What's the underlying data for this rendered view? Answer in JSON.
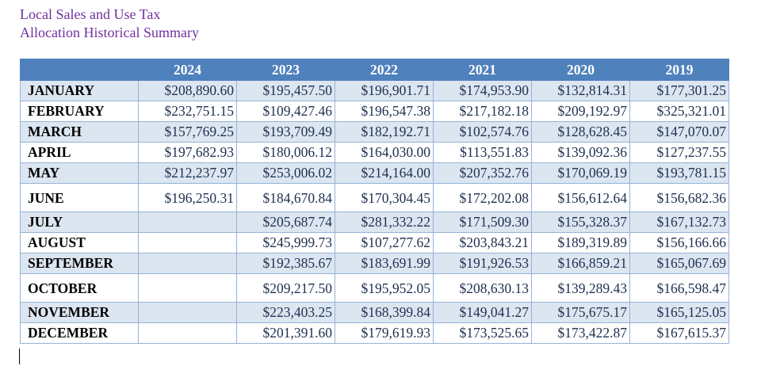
{
  "title": {
    "line1": "Local Sales and Use Tax",
    "line2": "Allocation Historical Summary"
  },
  "colors": {
    "title": "#7030a0",
    "header_bg": "#4f81bd",
    "band_bg": "#dce6f1",
    "grid": "#95b3d7"
  },
  "table": {
    "columns": [
      "",
      "2024",
      "2023",
      "2022",
      "2021",
      "2020",
      "2019"
    ],
    "rows": [
      {
        "month": "JANUARY",
        "values": [
          "$208,890.60",
          "$195,457.50",
          "$196,901.71",
          "$174,953.90",
          "$132,814.31",
          "$177,301.25"
        ]
      },
      {
        "month": "FEBRUARY",
        "values": [
          "$232,751.15",
          "$109,427.46",
          "$196,547.38",
          "$217,182.18",
          "$209,192.97",
          "$325,321.01"
        ]
      },
      {
        "month": "MARCH",
        "values": [
          "$157,769.25",
          "$193,709.49",
          "$182,192.71",
          "$102,574.76",
          "$128,628.45",
          "$147,070.07"
        ]
      },
      {
        "month": "APRIL",
        "values": [
          "$197,682.93",
          "$180,006.12",
          "$164,030.00",
          "$113,551.83",
          "$139,092.36",
          "$127,237.55"
        ]
      },
      {
        "month": "MAY",
        "values": [
          "$212,237.97",
          "$253,006.02",
          "$214,164.00",
          "$207,352.76",
          "$170,069.19",
          "$193,781.15"
        ]
      },
      {
        "month": "JUNE",
        "values": [
          "$196,250.31",
          "$184,670.84",
          "$170,304.45",
          "$172,202.08",
          "$156,612.64",
          "$156,682.36"
        ]
      },
      {
        "month": "JULY",
        "values": [
          "",
          "$205,687.74",
          "$281,332.22",
          "$171,509.30",
          "$155,328.37",
          "$167,132.73"
        ]
      },
      {
        "month": "AUGUST",
        "values": [
          "",
          "$245,999.73",
          "$107,277.62",
          "$203,843.21",
          "$189,319.89",
          "$156,166.66"
        ]
      },
      {
        "month": "SEPTEMBER",
        "values": [
          "",
          "$192,385.67",
          "$183,691.99",
          "$191,926.53",
          "$166,859.21",
          "$165,067.69"
        ]
      },
      {
        "month": "OCTOBER",
        "values": [
          "",
          "$209,217.50",
          "$195,952.05",
          "$208,630.13",
          "$139,289.43",
          "$166,598.47"
        ]
      },
      {
        "month": "NOVEMBER",
        "values": [
          "",
          "$223,403.25",
          "$168,399.84",
          "$149,041.27",
          "$175,675.17",
          "$165,125.05"
        ]
      },
      {
        "month": "DECEMBER",
        "values": [
          "",
          "$201,391.60",
          "$179,619.93",
          "$173,525.65",
          "$173,422.87",
          "$167,615.37"
        ]
      }
    ]
  }
}
